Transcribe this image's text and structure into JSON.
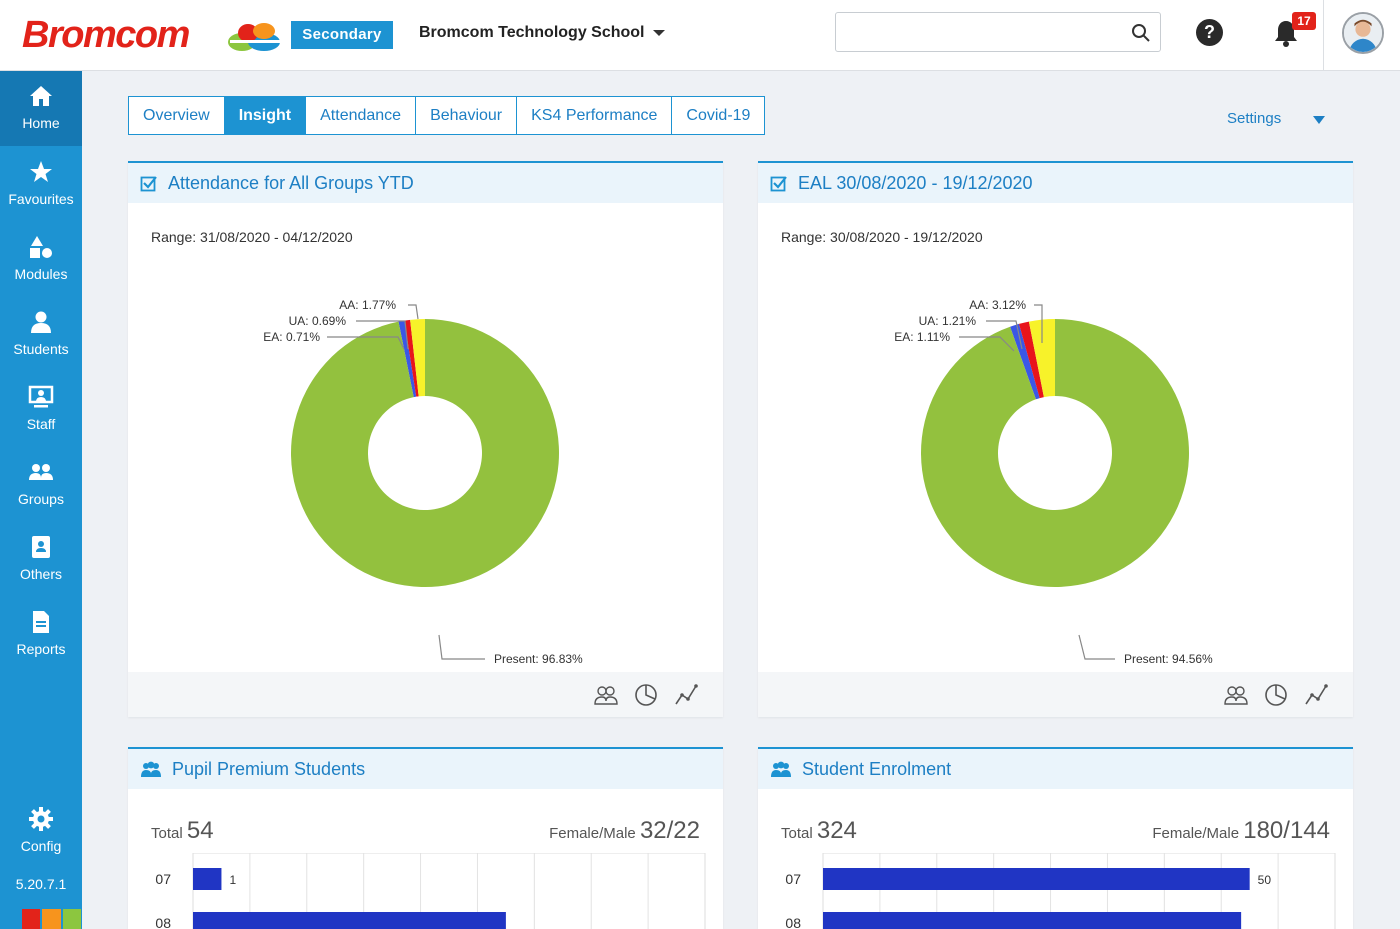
{
  "header": {
    "logo_text": "Bromcom",
    "phase_label": "Secondary",
    "school_name": "Bromcom Technology School",
    "search_placeholder": "",
    "help_label": "?",
    "notification_count": "17"
  },
  "sidebar": {
    "items": [
      {
        "label": "Home",
        "icon": "home-icon"
      },
      {
        "label": "Favourites",
        "icon": "star-icon"
      },
      {
        "label": "Modules",
        "icon": "shapes-icon"
      },
      {
        "label": "Students",
        "icon": "person-icon"
      },
      {
        "label": "Staff",
        "icon": "presentation-icon"
      },
      {
        "label": "Groups",
        "icon": "group-icon"
      },
      {
        "label": "Others",
        "icon": "contact-card-icon"
      },
      {
        "label": "Reports",
        "icon": "document-icon"
      },
      {
        "label": "Config",
        "icon": "gear-icon"
      }
    ],
    "version": "5.20.7.1",
    "strip_colors": [
      "#1d93d2",
      "#e2231a",
      "#f7941d",
      "#8cc63f"
    ]
  },
  "tabs": [
    {
      "label": "Overview",
      "active": false
    },
    {
      "label": "Insight",
      "active": true
    },
    {
      "label": "Attendance",
      "active": false
    },
    {
      "label": "Behaviour",
      "active": false
    },
    {
      "label": "KS4 Performance",
      "active": false
    },
    {
      "label": "Covid-19",
      "active": false
    }
  ],
  "settings_label": "Settings",
  "panels": {
    "attendance": {
      "title": "Attendance for All Groups YTD",
      "range": "Range: 31/08/2020 - 04/12/2020",
      "labels": {
        "aa": "AA: 1.77%",
        "ua": "UA: 0.69%",
        "ea": "EA: 0.71%",
        "present": "Present: 96.83%"
      }
    },
    "eal": {
      "title": "EAL 30/08/2020 - 19/12/2020",
      "range": "Range: 30/08/2020 - 19/12/2020",
      "labels": {
        "aa": "AA: 3.12%",
        "ua": "UA: 1.21%",
        "ea": "EA: 1.11%",
        "present": "Present: 94.56%"
      }
    },
    "pupil_premium": {
      "title": "Pupil Premium Students",
      "total_label": "Total",
      "total_value": "54",
      "fm_label": "Female/Male",
      "fm_value": "32/22"
    },
    "enrolment": {
      "title": "Student Enrolment",
      "total_label": "Total",
      "total_value": "324",
      "fm_label": "Female/Male",
      "fm_value": "180/144"
    }
  },
  "chart_data": [
    {
      "type": "pie",
      "title": "Attendance for All Groups YTD",
      "categories": [
        "Present",
        "AA",
        "UA",
        "EA"
      ],
      "values": [
        96.83,
        1.77,
        0.69,
        0.71
      ],
      "colors": [
        "#93c13e",
        "#f7f22a",
        "#e8141b",
        "#3b57e6"
      ]
    },
    {
      "type": "pie",
      "title": "EAL 30/08/2020 - 19/12/2020",
      "categories": [
        "Present",
        "AA",
        "UA",
        "EA"
      ],
      "values": [
        94.56,
        3.12,
        1.21,
        1.11
      ],
      "colors": [
        "#93c13e",
        "#f7f22a",
        "#e8141b",
        "#3b57e6"
      ]
    },
    {
      "type": "bar",
      "title": "Pupil Premium Students",
      "categories": [
        "07",
        "08"
      ],
      "values": [
        1,
        11
      ],
      "visible_value_labels": [
        "1",
        ""
      ],
      "xlim": [
        0,
        18
      ],
      "color": "#2035c4"
    },
    {
      "type": "bar",
      "title": "Student Enrolment",
      "categories": [
        "07",
        "08"
      ],
      "values": [
        50,
        49
      ],
      "visible_value_labels": [
        "50",
        ""
      ],
      "xlim": [
        0,
        60
      ],
      "color": "#2035c4"
    }
  ]
}
